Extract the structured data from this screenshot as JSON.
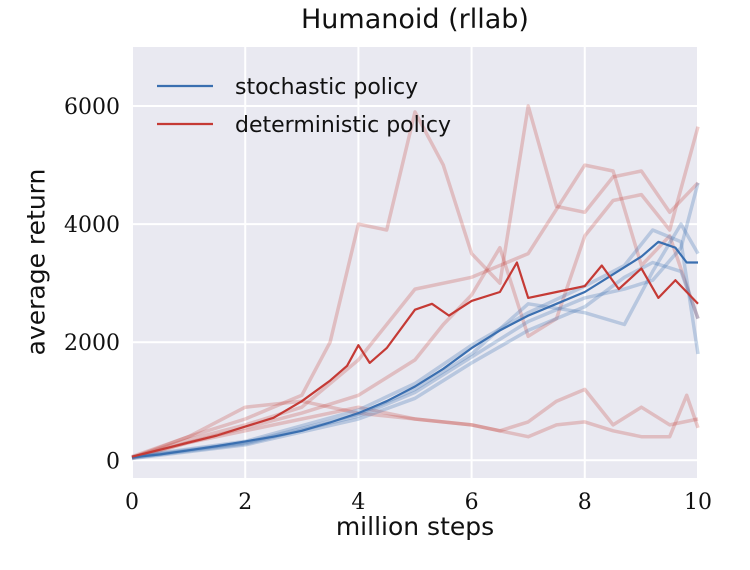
{
  "chart_data": {
    "type": "line",
    "title": "Humanoid (rllab)",
    "xlabel": "million steps",
    "ylabel": "average return",
    "xlim": [
      0,
      10
    ],
    "ylim": [
      -300,
      7000
    ],
    "xticks": [
      0,
      2,
      4,
      6,
      8,
      10
    ],
    "yticks": [
      0,
      2000,
      4000,
      6000
    ],
    "grid": true,
    "legend_position": "top-left",
    "colors": {
      "stochastic": "#3a6fb0",
      "deterministic": "#c53a35",
      "background": "#e9e9f1"
    },
    "series": [
      {
        "name": "stochastic policy",
        "role": "mean",
        "x": [
          0,
          0.5,
          1,
          1.5,
          2,
          2.5,
          3,
          3.5,
          4,
          4.5,
          5,
          5.5,
          6,
          6.5,
          7,
          7.5,
          8,
          8.5,
          9,
          9.3,
          9.6,
          9.8,
          10
        ],
        "y": [
          50,
          100,
          170,
          240,
          320,
          400,
          500,
          640,
          800,
          1000,
          1250,
          1550,
          1900,
          2200,
          2450,
          2650,
          2850,
          3150,
          3450,
          3700,
          3600,
          3350,
          3350
        ]
      },
      {
        "name": "deterministic policy",
        "role": "mean",
        "x": [
          0,
          0.5,
          1,
          1.5,
          2,
          2.5,
          3,
          3.5,
          3.8,
          4,
          4.2,
          4.5,
          5,
          5.3,
          5.6,
          6,
          6.5,
          6.8,
          7,
          7.5,
          8,
          8.3,
          8.6,
          9,
          9.3,
          9.6,
          10
        ],
        "y": [
          60,
          180,
          300,
          420,
          570,
          720,
          1000,
          1350,
          1600,
          1950,
          1650,
          1900,
          2550,
          2650,
          2450,
          2700,
          2850,
          3350,
          2750,
          2850,
          2950,
          3300,
          2900,
          3250,
          2750,
          3050,
          2650
        ]
      },
      {
        "role": "stochastic-seed",
        "x": [
          0,
          2,
          4,
          5,
          6,
          7,
          8,
          8.7,
          9.2,
          9.7,
          10
        ],
        "y": [
          40,
          280,
          750,
          1150,
          1750,
          2350,
          2750,
          2900,
          3050,
          3600,
          4700
        ]
      },
      {
        "role": "stochastic-seed",
        "x": [
          0,
          2,
          4,
          5,
          6,
          7,
          8,
          8.7,
          9.2,
          9.7,
          10
        ],
        "y": [
          30,
          260,
          700,
          1050,
          1650,
          2200,
          2600,
          3100,
          3350,
          3200,
          2400
        ]
      },
      {
        "role": "stochastic-seed",
        "x": [
          0,
          2,
          4,
          5,
          6,
          7,
          8,
          8.7,
          9.2,
          9.7,
          10
        ],
        "y": [
          60,
          320,
          850,
          1300,
          1950,
          2500,
          2950,
          3300,
          3900,
          3700,
          1800
        ]
      },
      {
        "role": "stochastic-seed",
        "x": [
          0,
          2,
          4,
          5,
          6,
          7,
          8,
          8.7,
          9.2,
          9.7,
          10
        ],
        "y": [
          50,
          300,
          780,
          1200,
          1800,
          2650,
          2500,
          2300,
          3200,
          4000,
          3500
        ]
      },
      {
        "role": "deterministic-seed",
        "x": [
          0,
          1,
          2,
          3,
          3.5,
          4,
          4.5,
          5,
          5.5,
          6,
          6.5,
          7,
          7.5,
          8,
          8.5,
          9,
          9.5,
          10
        ],
        "y": [
          40,
          400,
          700,
          1100,
          2000,
          4000,
          3900,
          5900,
          5000,
          3500,
          3000,
          6000,
          4300,
          4200,
          4800,
          4900,
          4200,
          4700
        ]
      },
      {
        "role": "deterministic-seed",
        "x": [
          0,
          1,
          2,
          3,
          4,
          4.5,
          5,
          5.5,
          6,
          6.5,
          7,
          7.5,
          8,
          8.5,
          9,
          9.5,
          10
        ],
        "y": [
          50,
          300,
          550,
          800,
          1100,
          1400,
          1700,
          2300,
          2800,
          3600,
          2100,
          2400,
          3800,
          4400,
          4500,
          3900,
          5650
        ]
      },
      {
        "role": "deterministic-seed",
        "x": [
          0,
          1,
          2,
          3,
          4,
          5,
          6,
          6.5,
          7,
          7.5,
          8,
          8.5,
          9,
          9.5,
          10
        ],
        "y": [
          60,
          400,
          900,
          1000,
          800,
          700,
          600,
          500,
          650,
          1000,
          1200,
          600,
          900,
          600,
          700
        ]
      },
      {
        "role": "deterministic-seed",
        "x": [
          0,
          1,
          2,
          3,
          4,
          5,
          6,
          7,
          7.5,
          8,
          8.5,
          9,
          9.5,
          9.8,
          10
        ],
        "y": [
          30,
          300,
          500,
          700,
          900,
          700,
          600,
          400,
          600,
          650,
          500,
          400,
          400,
          1100,
          550
        ]
      },
      {
        "role": "deterministic-seed",
        "x": [
          0,
          1,
          2,
          3,
          4,
          5,
          6,
          7,
          8,
          8.5,
          9,
          9.5,
          10
        ],
        "y": [
          50,
          350,
          600,
          900,
          1700,
          2900,
          3100,
          3500,
          5000,
          4900,
          3300,
          3800,
          2400
        ]
      }
    ],
    "legend": [
      "stochastic policy",
      "deterministic policy"
    ]
  }
}
